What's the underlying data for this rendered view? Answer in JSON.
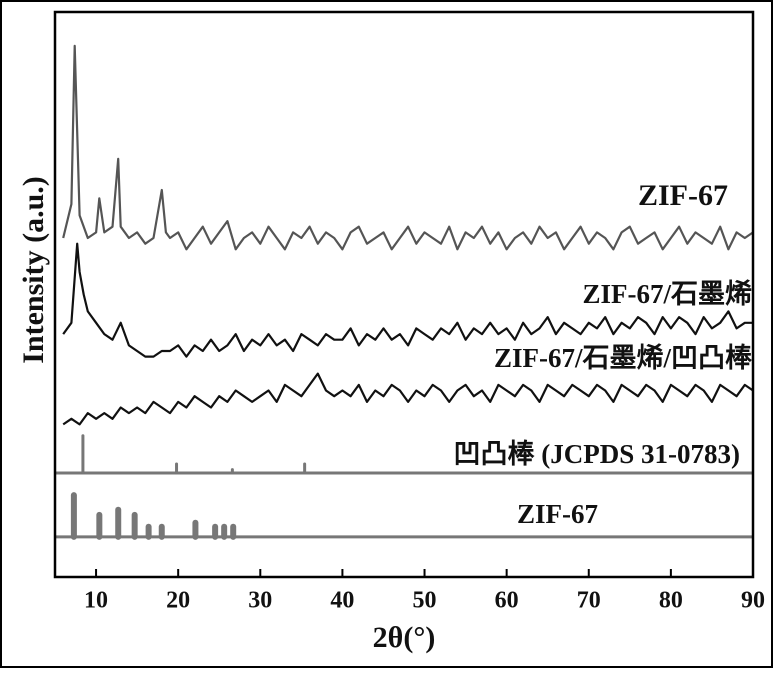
{
  "chart_data": {
    "type": "line",
    "xlabel": "2θ(°)",
    "ylabel": "Intensity (a.u.)",
    "xlim": [
      5,
      90
    ],
    "ylim": [
      0,
      100
    ],
    "xticks": [
      10,
      20,
      30,
      40,
      50,
      60,
      70,
      80,
      90
    ],
    "series": [
      {
        "name": "ZIF-67",
        "color": "#555555",
        "x": [
          6,
          7,
          7.4,
          8,
          9,
          10,
          10.4,
          11,
          12,
          12.7,
          13,
          14,
          15,
          16,
          17,
          18,
          18.5,
          19,
          20,
          21,
          22,
          23,
          24,
          25,
          26,
          27,
          28,
          29,
          30,
          31,
          32,
          33,
          34,
          35,
          36,
          37,
          38,
          39,
          40,
          41,
          42,
          43,
          44,
          45,
          46,
          47,
          48,
          49,
          50,
          51,
          52,
          53,
          54,
          55,
          56,
          57,
          58,
          59,
          60,
          61,
          62,
          63,
          64,
          65,
          66,
          67,
          68,
          69,
          70,
          71,
          72,
          73,
          74,
          75,
          76,
          77,
          78,
          79,
          80,
          81,
          82,
          83,
          84,
          85,
          86,
          87,
          88,
          89,
          90
        ],
        "values": [
          60,
          66,
          94,
          64,
          60,
          61,
          67,
          61,
          62,
          74,
          62,
          60,
          61,
          59,
          60,
          68.5,
          61,
          60,
          61,
          58,
          60,
          62,
          59,
          61,
          63,
          58,
          60,
          61,
          59,
          62,
          60,
          58,
          61,
          60,
          62,
          59,
          61,
          60,
          58,
          61,
          62,
          59,
          60,
          61,
          58,
          60,
          62,
          59,
          61,
          60,
          59,
          62,
          58,
          61,
          60,
          62,
          59,
          61,
          58,
          60,
          61,
          59,
          62,
          60,
          61,
          58,
          60,
          62,
          59,
          61,
          60,
          58,
          61,
          62,
          59,
          60,
          61,
          58,
          60,
          62,
          59,
          61,
          60,
          59,
          62,
          58,
          61,
          60,
          61
        ]
      },
      {
        "name": "ZIF-67/石墨烯",
        "color": "#111111",
        "x": [
          6,
          7,
          7.7,
          8,
          8.5,
          9,
          10,
          11,
          12,
          13,
          14,
          15,
          16,
          17,
          18,
          19,
          20,
          21,
          22,
          23,
          24,
          25,
          26,
          27,
          28,
          29,
          30,
          31,
          32,
          33,
          34,
          35,
          36,
          37,
          38,
          39,
          40,
          41,
          42,
          43,
          44,
          45,
          46,
          47,
          48,
          49,
          50,
          51,
          52,
          53,
          54,
          55,
          56,
          57,
          58,
          59,
          60,
          61,
          62,
          63,
          64,
          65,
          66,
          67,
          68,
          69,
          70,
          71,
          72,
          73,
          74,
          75,
          76,
          77,
          78,
          79,
          80,
          81,
          82,
          83,
          84,
          85,
          86,
          87,
          88,
          89,
          90
        ],
        "values": [
          43,
          45,
          59,
          54,
          50,
          47,
          45,
          43,
          42,
          45,
          41,
          40,
          39,
          39,
          40,
          40,
          41,
          39,
          41,
          40,
          42,
          40,
          41,
          43,
          40,
          42,
          41,
          43,
          41,
          42,
          40,
          43,
          42,
          41,
          43,
          42,
          42,
          44,
          41,
          43,
          42,
          44,
          42,
          43,
          41,
          44,
          43,
          42,
          44,
          43,
          45,
          42,
          44,
          43,
          45,
          43,
          44,
          42,
          45,
          43,
          44,
          46,
          43,
          45,
          44,
          43,
          45,
          44,
          46,
          43,
          45,
          44,
          46,
          45,
          43,
          46,
          44,
          46,
          45,
          43,
          46,
          44,
          45,
          47,
          44,
          45,
          45
        ]
      },
      {
        "name": "ZIF-67/石墨烯/凹凸棒",
        "color": "#111111",
        "x": [
          6,
          7,
          8,
          9,
          10,
          11,
          12,
          13,
          14,
          15,
          16,
          17,
          18,
          19,
          20,
          21,
          22,
          23,
          24,
          25,
          26,
          27,
          28,
          29,
          30,
          31,
          32,
          33,
          34,
          35,
          36,
          37,
          38,
          39,
          40,
          41,
          42,
          43,
          44,
          45,
          46,
          47,
          48,
          49,
          50,
          51,
          52,
          53,
          54,
          55,
          56,
          57,
          58,
          59,
          60,
          61,
          62,
          63,
          64,
          65,
          66,
          67,
          68,
          69,
          70,
          71,
          72,
          73,
          74,
          75,
          76,
          77,
          78,
          79,
          80,
          81,
          82,
          83,
          84,
          85,
          86,
          87,
          88,
          89,
          90
        ],
        "values": [
          27,
          28,
          27,
          29,
          28,
          29,
          28,
          30,
          29,
          30,
          29,
          31,
          30,
          29,
          31,
          30,
          32,
          31,
          30,
          32,
          31,
          33,
          32,
          31,
          32,
          33,
          31,
          34,
          33,
          32,
          34,
          36,
          33,
          32,
          33,
          32,
          34,
          31,
          33,
          32,
          34,
          33,
          31,
          33,
          32,
          34,
          33,
          31,
          33,
          34,
          32,
          33,
          31,
          34,
          33,
          32,
          34,
          33,
          31,
          34,
          33,
          32,
          34,
          33,
          32,
          34,
          33,
          31,
          34,
          33,
          32,
          34,
          33,
          31,
          34,
          33,
          32,
          34,
          33,
          31,
          34,
          33,
          32,
          34,
          33
        ]
      }
    ],
    "reference_patterns": [
      {
        "name": "凹凸棒 (JCPDS 31-0783)",
        "color": "#777777",
        "baseline": 18.4,
        "x": [
          8.4,
          19.8,
          26.6,
          35.4
        ],
        "values": [
          25,
          20,
          19,
          20
        ]
      },
      {
        "name": "ZIF-67",
        "color": "#777777",
        "baseline": 7.1,
        "x": [
          7.3,
          10.4,
          12.7,
          14.7,
          16.4,
          18,
          22.1,
          24.5,
          25.6,
          26.7
        ],
        "values": [
          14.5,
          11,
          11.9,
          11,
          8.9,
          8.9,
          9.6,
          8.9,
          8.9,
          8.9
        ]
      }
    ]
  }
}
